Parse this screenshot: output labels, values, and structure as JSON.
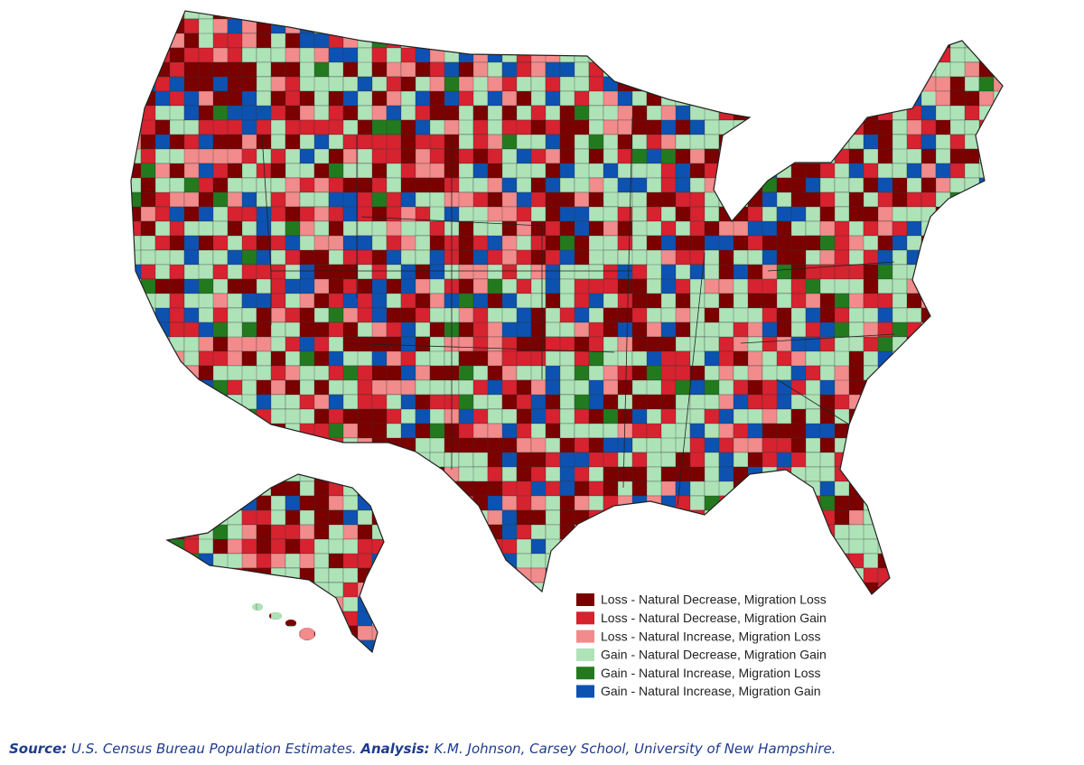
{
  "legend": {
    "items": [
      {
        "label": "Loss - Natural Decrease, Migration Loss",
        "color": "#7b0000"
      },
      {
        "label": "Loss - Natural Decrease, Migration Gain",
        "color": "#d7222f"
      },
      {
        "label": "Loss - Natural Increase, Migration Loss",
        "color": "#f28b8b"
      },
      {
        "label": "Gain - Natural Decrease, Migration Gain",
        "color": "#aee3b8"
      },
      {
        "label": "Gain - Natural Increase, Migration Loss",
        "color": "#237a1e"
      },
      {
        "label": "Gain - Natural Increase, Migration Gain",
        "color": "#0d52b0"
      }
    ]
  },
  "source": {
    "label": "Source:",
    "text": "U.S. Census Bureau Population Estimates.",
    "analysis_label": "Analysis:",
    "analysis_text": "K.M. Johnson, Carsey School, University of New Hampshire."
  }
}
